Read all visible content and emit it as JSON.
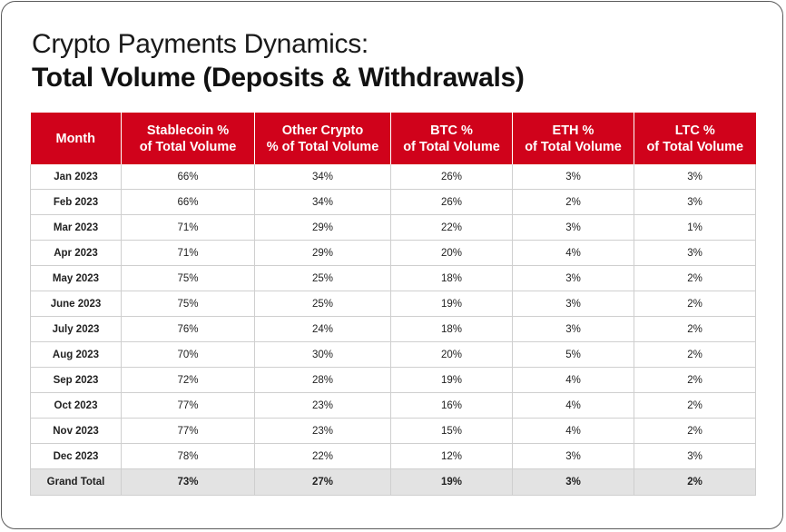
{
  "title_line1": "Crypto Payments Dynamics:",
  "title_line2": "Total Volume (Deposits & Withdrawals)",
  "chart_data": {
    "type": "table",
    "title": "Crypto Payments Dynamics: Total Volume (Deposits & Withdrawals)",
    "columns": [
      {
        "line1": "Month",
        "line2": ""
      },
      {
        "line1": "Stablecoin %",
        "line2": "of Total Volume"
      },
      {
        "line1": "Other Crypto",
        "line2": "% of Total Volume"
      },
      {
        "line1": "BTC %",
        "line2": "of Total Volume"
      },
      {
        "line1": "ETH %",
        "line2": "of Total Volume"
      },
      {
        "line1": "LTC %",
        "line2": "of Total Volume"
      }
    ],
    "rows": [
      [
        "Jan 2023",
        "66%",
        "34%",
        "26%",
        "3%",
        "3%"
      ],
      [
        "Feb 2023",
        "66%",
        "34%",
        "26%",
        "2%",
        "3%"
      ],
      [
        "Mar 2023",
        "71%",
        "29%",
        "22%",
        "3%",
        "1%"
      ],
      [
        "Apr 2023",
        "71%",
        "29%",
        "20%",
        "4%",
        "3%"
      ],
      [
        "May 2023",
        "75%",
        "25%",
        "18%",
        "3%",
        "2%"
      ],
      [
        "June 2023",
        "75%",
        "25%",
        "19%",
        "3%",
        "2%"
      ],
      [
        "July 2023",
        "76%",
        "24%",
        "18%",
        "3%",
        "2%"
      ],
      [
        "Aug 2023",
        "70%",
        "30%",
        "20%",
        "5%",
        "2%"
      ],
      [
        "Sep 2023",
        "72%",
        "28%",
        "19%",
        "4%",
        "2%"
      ],
      [
        "Oct 2023",
        "77%",
        "23%",
        "16%",
        "4%",
        "2%"
      ],
      [
        "Nov 2023",
        "77%",
        "23%",
        "15%",
        "4%",
        "2%"
      ],
      [
        "Dec 2023",
        "78%",
        "22%",
        "12%",
        "3%",
        "3%"
      ]
    ],
    "total": [
      "Grand Total",
      "73%",
      "27%",
      "19%",
      "3%",
      "2%"
    ],
    "colors": {
      "header_bg": "#d0021b",
      "header_text": "#ffffff",
      "total_bg": "#e3e3e3"
    }
  }
}
